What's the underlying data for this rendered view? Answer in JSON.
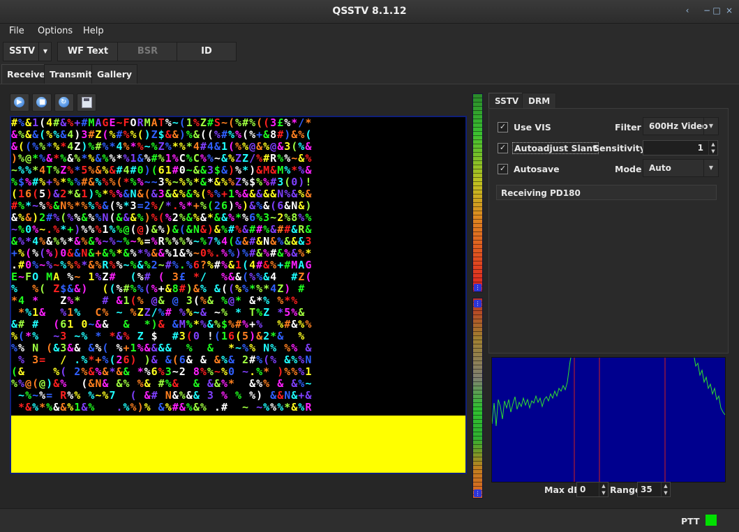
{
  "window": {
    "title": "QSSTV 8.1.12",
    "controls": [
      "‹",
      "−",
      "□",
      "×"
    ]
  },
  "menu": [
    "File",
    "Options",
    "Help"
  ],
  "toolbar": {
    "mode_select": "SSTV",
    "buttons": [
      {
        "label": "WF Text",
        "enabled": true
      },
      {
        "label": "BSR",
        "enabled": false
      },
      {
        "label": "ID",
        "enabled": true
      }
    ]
  },
  "main_tabs": [
    {
      "label": "Receive",
      "active": true
    },
    {
      "label": "Transmit",
      "active": false
    },
    {
      "label": "Gallery",
      "active": false
    }
  ],
  "image_toolbar": [
    {
      "name": "start-icon"
    },
    {
      "name": "stop-icon"
    },
    {
      "name": "resync-icon"
    },
    {
      "name": "save-icon"
    }
  ],
  "received_image": {
    "decoded_row": "#%&1(4#&%+#MAGE~FORMAT%~(1%Z#S~(",
    "noise": "#%&1(4#&%+#MAGE~FORMAT%~(1%Z#S~(%#%((3£%*/*&%&&(%%&4)3#Z(%#%%()Z$&&)%&((%#%%(%+&8#)&%(&((%%*%*4Z)%#%*4%*%~%Z%*%*4#4&1(%%@&%@&3(%&)%@*%&*%&%*%&%%*%1&%#%1%C%C%%~&%ZZ/%#R%%~&%~%%*4T%Z%*5%&%&#4#0)(61#0~&&3$&)%*)&M&M%*%&%$%#%+%*%%#&%%%(*%%~~3%~%%*&*&%%Z%$%%#3(0)!(16(5)&2*&1)%*%%&N&(&3&&%&%(%%+1%&&&&&N%&%&#%*~%%&N%*%%%&(%*3=2%/*.%*+%(26)%)&%&(6&N&)&%&)2#%(%%&%%N(&&&%)%(%2%&%&*&&%*%6%3~2%8%%~%0%~.%*+)%%%1%%@(@)&%)&(&N&)&%#%&##%&##&R&&%*4%&%%*&%&%~%~%~%=%R%%%%~%7%4(&&#&N&%&&&3+%(%(%)0&&N&+&%*&%*%&&%1&%~0%.%%)%#&%#&%&%*.#0%~%~%%%*&%R%%~%&%2~#%.%6?%"
  },
  "side_tabs": [
    {
      "label": "SSTV",
      "active": true
    },
    {
      "label": "DRM",
      "active": false
    }
  ],
  "sstv_settings": {
    "use_vis": {
      "label": "Use VIS",
      "checked": true
    },
    "autoadjust_slant": {
      "label": "Autoadjust Slant",
      "checked": true
    },
    "autosave": {
      "label": "Autosave",
      "checked": true
    },
    "filter": {
      "label": "Filter",
      "value": "600Hz Video"
    },
    "sensitivity": {
      "label": "Sensitivity",
      "value": "1"
    },
    "mode": {
      "label": "Mode",
      "value": "Auto"
    },
    "status_text": "Receiving PD180"
  },
  "spectrum": {
    "max_db": {
      "label": "Max dB",
      "value": "0"
    },
    "range": {
      "label": "Range",
      "value": "35"
    }
  },
  "footer": {
    "ptt_label": "PTT",
    "ptt_color": "#00e000"
  },
  "colors": {
    "accent": "#2e35d8",
    "image_border": "#0f1f7a",
    "spectrum_bg": "#00008e",
    "marker": "#d02020"
  },
  "meters": {
    "upper_level": 0.62,
    "lower_level": 0.3
  }
}
